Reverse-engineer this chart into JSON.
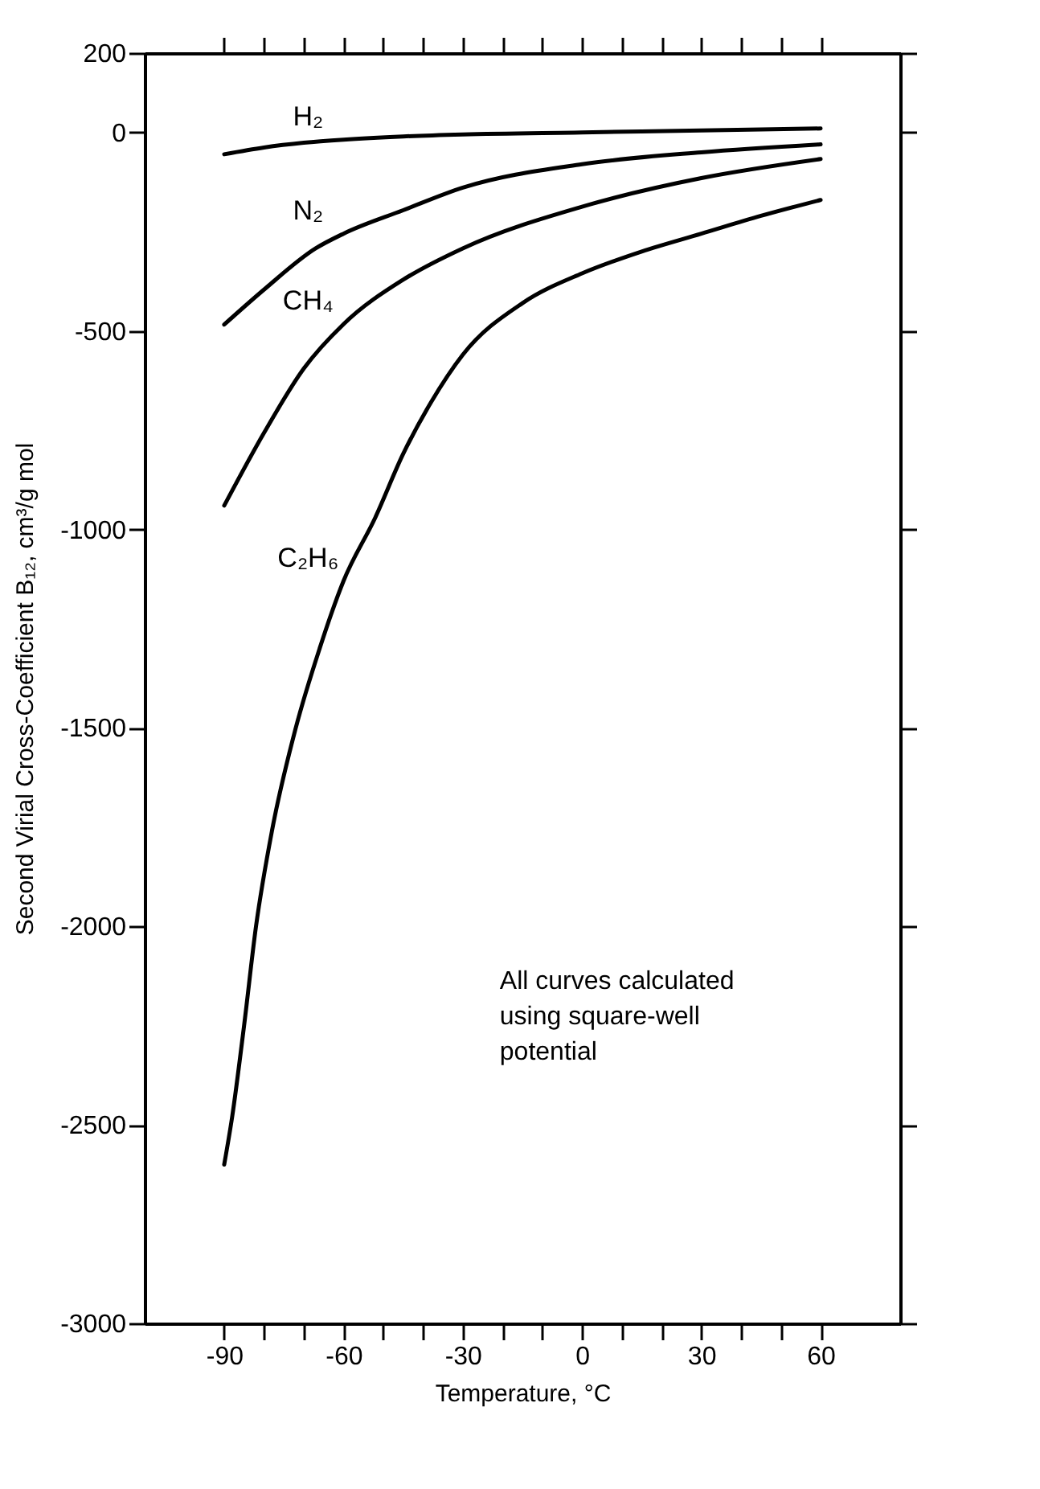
{
  "chart_data": {
    "type": "line",
    "xlabel": "Temperature, °C",
    "ylabel": "Second Virial Cross-Coefficient B₁₂, cm³/g mol",
    "xlim": [
      -110,
      80
    ],
    "ylim": [
      -3000,
      200
    ],
    "xticks": [
      -90,
      {
        "value": -80,
        "label": null
      },
      {
        "value": -70,
        "label": null
      },
      -60,
      {
        "value": -50,
        "label": null
      },
      {
        "value": -40,
        "label": null
      },
      -30,
      {
        "value": -20,
        "label": null
      },
      {
        "value": -10,
        "label": null
      },
      0,
      {
        "value": 10,
        "label": null
      },
      {
        "value": 20,
        "label": null
      },
      30,
      {
        "value": 40,
        "label": null
      },
      {
        "value": 50,
        "label": null
      },
      60
    ],
    "yticks": [
      200,
      0,
      -500,
      -1000,
      -1500,
      -2000,
      -2500,
      -3000
    ],
    "grid": false,
    "marker": "none",
    "line_style": "solid",
    "annotations": [
      "All curves calculated using square-well potential"
    ],
    "series": [
      {
        "name": "H₂",
        "color": "#000000",
        "x": [
          -90,
          -80,
          -70,
          -60,
          -45,
          -30,
          0,
          30,
          60
        ],
        "values": [
          -55,
          -38,
          -26,
          -18,
          -10,
          -5,
          0,
          5,
          10
        ]
      },
      {
        "name": "N₂",
        "color": "#000000",
        "x": [
          -90,
          -80,
          -67,
          -60,
          -45,
          -30,
          0,
          30,
          60
        ],
        "values": [
          -484,
          -396,
          -292,
          -255,
          -196,
          -139,
          -80,
          -50,
          -30
        ]
      },
      {
        "name": "CH₄",
        "color": "#000000",
        "x": [
          -90,
          -80,
          -70,
          -60,
          -45,
          -30,
          0,
          30,
          60
        ],
        "values": [
          -940,
          -757,
          -595,
          -483,
          -371,
          -292,
          -187,
          -115,
          -67
        ]
      },
      {
        "name": "C₂H₆",
        "color": "#000000",
        "x": [
          -90,
          -88,
          -85,
          -82,
          -78,
          -72,
          -66,
          -60,
          -52,
          -45,
          -38,
          -30,
          -15,
          0,
          15,
          30,
          45,
          60
        ],
        "values": [
          -2600,
          -2480,
          -2250,
          -2000,
          -1760,
          -1500,
          -1300,
          -1130,
          -970,
          -810,
          -680,
          -560,
          -430,
          -355,
          -300,
          -255,
          -210,
          -170
        ]
      }
    ]
  }
}
